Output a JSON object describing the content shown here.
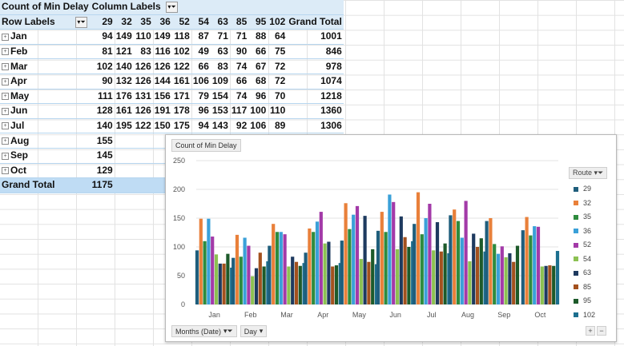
{
  "pivot": {
    "corner_label": "Count of Min Delay",
    "column_labels": "Column Labels",
    "row_labels": "Row Labels",
    "columns": [
      "29",
      "32",
      "35",
      "36",
      "52",
      "54",
      "63",
      "85",
      "95",
      "102",
      "Grand Total"
    ],
    "rows": [
      {
        "label": "Jan",
        "values": [
          "94",
          "149",
          "110",
          "149",
          "118",
          "87",
          "71",
          "71",
          "88",
          "64",
          "1001"
        ]
      },
      {
        "label": "Feb",
        "values": [
          "81",
          "121",
          "83",
          "116",
          "102",
          "49",
          "63",
          "90",
          "66",
          "75",
          "846"
        ]
      },
      {
        "label": "Mar",
        "values": [
          "102",
          "140",
          "126",
          "126",
          "122",
          "66",
          "83",
          "74",
          "67",
          "72",
          "978"
        ]
      },
      {
        "label": "Apr",
        "values": [
          "90",
          "132",
          "126",
          "144",
          "161",
          "106",
          "109",
          "66",
          "68",
          "72",
          "1074"
        ]
      },
      {
        "label": "May",
        "values": [
          "111",
          "176",
          "131",
          "156",
          "171",
          "79",
          "154",
          "74",
          "96",
          "70",
          "1218"
        ]
      },
      {
        "label": "Jun",
        "values": [
          "128",
          "161",
          "126",
          "191",
          "178",
          "96",
          "153",
          "117",
          "100",
          "110",
          "1360"
        ]
      },
      {
        "label": "Jul",
        "values": [
          "140",
          "195",
          "122",
          "150",
          "175",
          "94",
          "143",
          "92",
          "106",
          "89",
          "1306"
        ]
      },
      {
        "label": "Aug",
        "values": [
          "155",
          "",
          "",
          "",
          "",
          "",
          "",
          "",
          "",
          "",
          ""
        ]
      },
      {
        "label": "Sep",
        "values": [
          "145",
          "",
          "",
          "",
          "",
          "",
          "",
          "",
          "",
          "",
          ""
        ]
      },
      {
        "label": "Oct",
        "values": [
          "129",
          "",
          "",
          "",
          "",
          "",
          "",
          "",
          "",
          "",
          ""
        ]
      }
    ],
    "grand_total_label": "Grand Total",
    "grand_total_values": [
      "1175",
      "",
      "",
      "",
      "",
      "",
      "",
      "",
      "",
      "",
      ""
    ]
  },
  "chart": {
    "title_button": "Count of Min Delay",
    "legend_header": "Route",
    "filter_months": "Months (Date)",
    "filter_day": "Day",
    "plus": "+",
    "minus": "−"
  },
  "chart_data": {
    "type": "bar",
    "categories": [
      "Jan",
      "Feb",
      "Mar",
      "Apr",
      "May",
      "Jun",
      "Jul",
      "Aug",
      "Sep",
      "Oct"
    ],
    "ylim": [
      0,
      250
    ],
    "yticks": [
      0,
      50,
      100,
      150,
      200,
      250
    ],
    "grid": true,
    "legend_position": "right",
    "series": [
      {
        "name": "29",
        "color": "#1f5e7c",
        "values": [
          94,
          81,
          102,
          90,
          111,
          128,
          140,
          155,
          145,
          129
        ]
      },
      {
        "name": "32",
        "color": "#e9803a",
        "values": [
          149,
          121,
          140,
          132,
          176,
          161,
          195,
          165,
          150,
          152
        ]
      },
      {
        "name": "35",
        "color": "#2e8b3e",
        "values": [
          110,
          83,
          126,
          126,
          131,
          126,
          122,
          145,
          105,
          120
        ]
      },
      {
        "name": "36",
        "color": "#3aa0d8",
        "values": [
          149,
          116,
          126,
          144,
          156,
          191,
          150,
          116,
          88,
          136
        ]
      },
      {
        "name": "52",
        "color": "#a33aa8",
        "values": [
          118,
          102,
          122,
          161,
          171,
          178,
          175,
          180,
          101,
          135
        ]
      },
      {
        "name": "54",
        "color": "#8cc152",
        "values": [
          87,
          49,
          66,
          106,
          79,
          96,
          94,
          75,
          82,
          66
        ]
      },
      {
        "name": "63",
        "color": "#1e3a5f",
        "values": [
          71,
          63,
          83,
          109,
          154,
          153,
          143,
          123,
          89,
          67
        ]
      },
      {
        "name": "85",
        "color": "#a3511e",
        "values": [
          71,
          90,
          74,
          66,
          74,
          117,
          92,
          100,
          74,
          68
        ]
      },
      {
        "name": "95",
        "color": "#1d5a2a",
        "values": [
          88,
          66,
          67,
          68,
          96,
          100,
          106,
          115,
          102,
          67
        ]
      },
      {
        "name": "102",
        "color": "#1c6f8f",
        "values": [
          64,
          75,
          72,
          72,
          70,
          110,
          89,
          92,
          0,
          93
        ]
      }
    ]
  }
}
